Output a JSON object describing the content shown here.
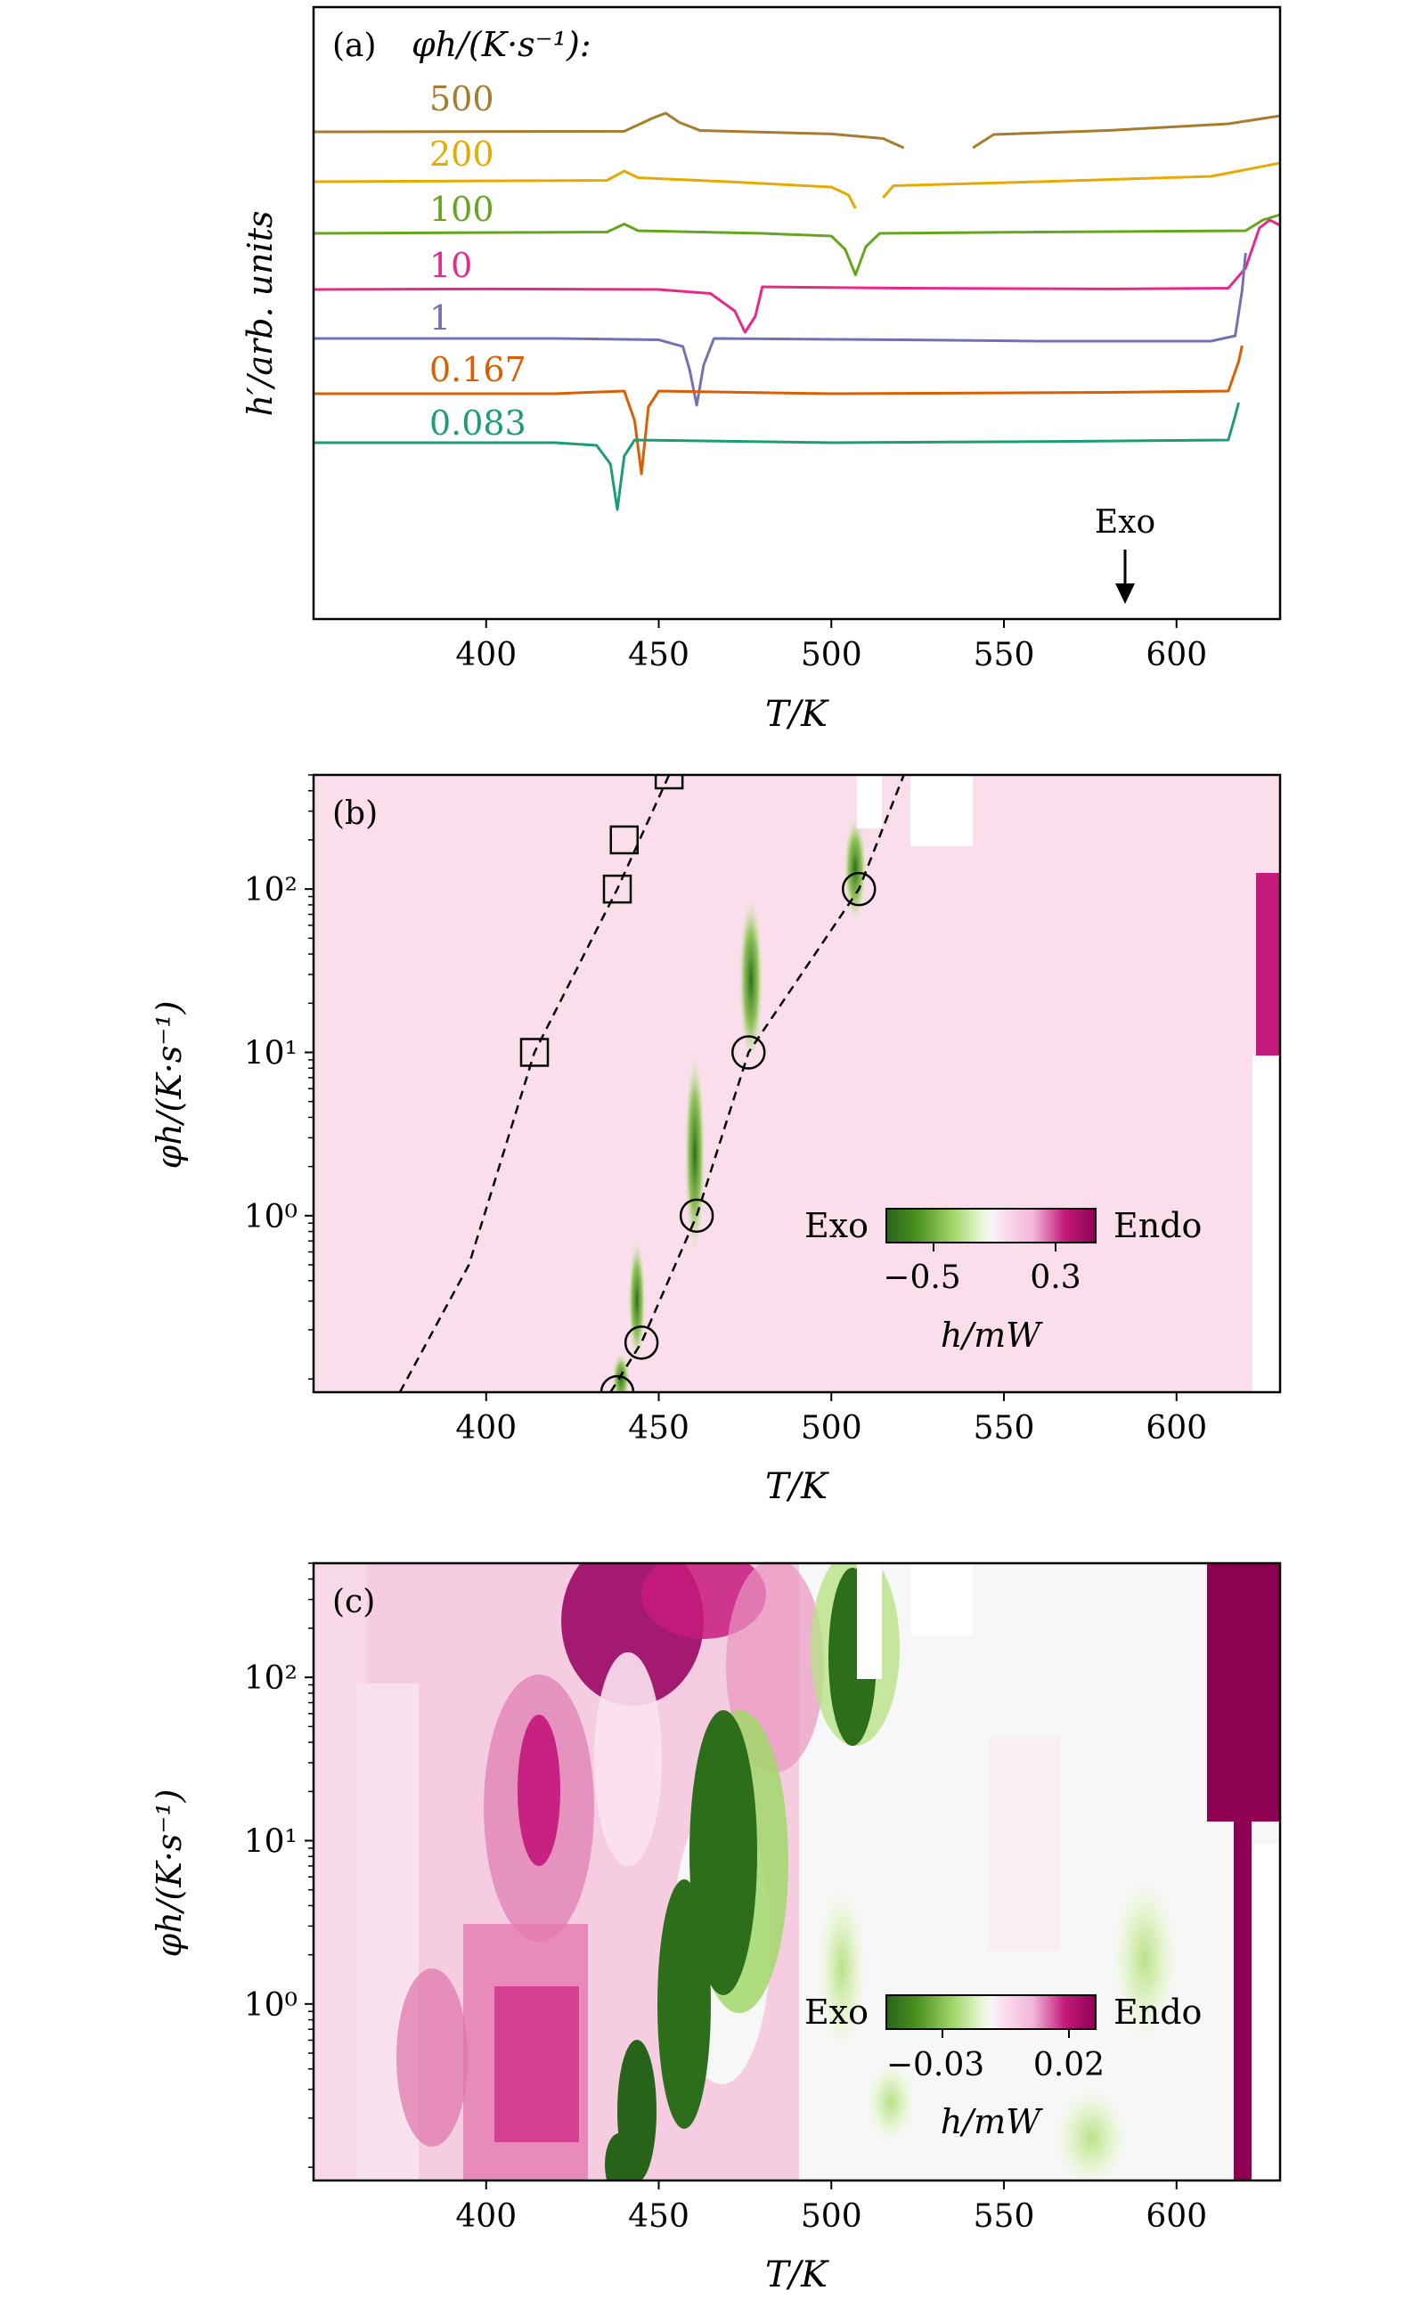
{
  "chart_data": [
    {
      "panel": "(a)",
      "type": "line",
      "legend_title": "φh/(K·s⁻¹):",
      "xlabel": "T/K",
      "ylabel": "h′/arb. units",
      "xlim": [
        350,
        630
      ],
      "xticks": [
        400,
        450,
        500,
        550,
        600
      ],
      "yticks": [],
      "annotation": "Exo",
      "series": [
        {
          "name": "500",
          "color": "#a67c2e",
          "points": [
            [
              350,
              0.0
            ],
            [
              440,
              0.02
            ],
            [
              448,
              0.5
            ],
            [
              452,
              0.7
            ],
            [
              456,
              0.35
            ],
            [
              462,
              0.05
            ],
            [
              500,
              -0.08
            ],
            [
              515,
              -0.25
            ],
            [
              521,
              -0.6
            ]
          ],
          "points2": [
            [
              541,
              -0.6
            ],
            [
              547,
              -0.1
            ],
            [
              580,
              0.05
            ],
            [
              615,
              0.3
            ],
            [
              630,
              0.6
            ]
          ]
        },
        {
          "name": "200",
          "color": "#e6ab02",
          "points": [
            [
              350,
              0.0
            ],
            [
              435,
              0.05
            ],
            [
              440,
              0.4
            ],
            [
              444,
              0.15
            ],
            [
              470,
              0.0
            ],
            [
              500,
              -0.2
            ],
            [
              505,
              -0.5
            ],
            [
              507,
              -1.0
            ]
          ],
          "points2": [
            [
              515,
              -0.6
            ],
            [
              518,
              -0.15
            ],
            [
              560,
              0.0
            ],
            [
              610,
              0.2
            ],
            [
              630,
              0.7
            ]
          ]
        },
        {
          "name": "100",
          "color": "#66a61e",
          "points": [
            [
              350,
              0.0
            ],
            [
              435,
              0.05
            ],
            [
              440,
              0.35
            ],
            [
              444,
              0.1
            ],
            [
              480,
              0.0
            ],
            [
              500,
              -0.1
            ],
            [
              504,
              -0.6
            ],
            [
              507,
              -1.55
            ],
            [
              510,
              -0.5
            ],
            [
              514,
              0.0
            ],
            [
              560,
              0.05
            ],
            [
              620,
              0.1
            ],
            [
              625,
              0.5
            ],
            [
              630,
              0.7
            ]
          ]
        },
        {
          "name": "10",
          "color": "#e7298a",
          "points": [
            [
              350,
              0.0
            ],
            [
              400,
              0.02
            ],
            [
              450,
              0.0
            ],
            [
              465,
              -0.15
            ],
            [
              472,
              -0.8
            ],
            [
              475,
              -1.6
            ],
            [
              478,
              -1.0
            ],
            [
              480,
              0.1
            ],
            [
              520,
              0.05
            ],
            [
              580,
              0.02
            ],
            [
              615,
              0.05
            ],
            [
              620,
              0.8
            ],
            [
              624,
              2.3
            ],
            [
              627,
              2.6
            ],
            [
              630,
              2.4
            ]
          ]
        },
        {
          "name": "1",
          "color": "#7570b3",
          "points": [
            [
              350,
              0.0
            ],
            [
              420,
              0.0
            ],
            [
              450,
              -0.05
            ],
            [
              457,
              -0.3
            ],
            [
              459,
              -1.2
            ],
            [
              461,
              -2.5
            ],
            [
              463,
              -1.0
            ],
            [
              466,
              0.0
            ],
            [
              520,
              -0.05
            ],
            [
              560,
              -0.1
            ],
            [
              610,
              -0.1
            ],
            [
              617,
              0.1
            ],
            [
              619,
              1.8
            ],
            [
              620,
              3.2
            ]
          ]
        },
        {
          "name": "0.167",
          "color": "#d95f02",
          "points": [
            [
              350,
              0.0
            ],
            [
              420,
              0.0
            ],
            [
              440,
              0.1
            ],
            [
              443,
              -1.0
            ],
            [
              445,
              -3.0
            ],
            [
              447,
              -0.5
            ],
            [
              450,
              0.1
            ],
            [
              500,
              0.0
            ],
            [
              580,
              0.05
            ],
            [
              615,
              0.1
            ],
            [
              618,
              1.2
            ],
            [
              619,
              1.8
            ]
          ]
        },
        {
          "name": "0.083",
          "color": "#1b9e77",
          "points": [
            [
              350,
              0.0
            ],
            [
              420,
              0.0
            ],
            [
              432,
              -0.1
            ],
            [
              436,
              -0.8
            ],
            [
              438,
              -2.5
            ],
            [
              440,
              -0.5
            ],
            [
              443,
              0.1
            ],
            [
              500,
              0.0
            ],
            [
              570,
              0.05
            ],
            [
              615,
              0.1
            ],
            [
              617,
              1.0
            ],
            [
              618,
              1.5
            ]
          ]
        }
      ]
    },
    {
      "panel": "(b)",
      "type": "heatmap",
      "xlabel": "T/K",
      "ylabel": "φh/(K·s⁻¹)",
      "xlim": [
        350,
        630
      ],
      "ylim": [
        0.083,
        500
      ],
      "yscale": "log",
      "xticks": [
        400,
        450,
        500,
        550,
        600
      ],
      "ytick_labels": [
        "10⁰",
        "10¹",
        "10²"
      ],
      "colorbar": {
        "left_label": "Exo",
        "right_label": "Endo",
        "tick_labels": [
          "−0.5",
          "0.3"
        ],
        "label": "h/mW"
      },
      "squares": [
        [
          414,
          10
        ],
        [
          438,
          100
        ],
        [
          440,
          200
        ],
        [
          453,
          500
        ]
      ],
      "circles": [
        [
          438,
          0.083
        ],
        [
          445,
          0.167
        ],
        [
          461,
          1
        ],
        [
          476,
          10
        ],
        [
          508,
          100
        ]
      ],
      "fit_lines": [
        [
          [
            375,
            0.083
          ],
          [
            395,
            0.5
          ],
          [
            414,
            10
          ],
          [
            438,
            100
          ],
          [
            453,
            500
          ]
        ],
        [
          [
            436,
            0.083
          ],
          [
            445,
            0.167
          ],
          [
            461,
            1
          ],
          [
            476,
            10
          ],
          [
            508,
            100
          ],
          [
            521,
            500
          ]
        ]
      ]
    },
    {
      "panel": "(c)",
      "type": "heatmap",
      "xlabel": "T/K",
      "ylabel": "φh/(K·s⁻¹)",
      "xlim": [
        350,
        630
      ],
      "ylim": [
        0.083,
        500
      ],
      "yscale": "log",
      "xticks": [
        400,
        450,
        500,
        550,
        600
      ],
      "ytick_labels": [
        "10⁰",
        "10¹",
        "10²"
      ],
      "colorbar": {
        "left_label": "Exo",
        "right_label": "Endo",
        "tick_labels": [
          "−0.03",
          "0.02"
        ],
        "label": "h/mW"
      }
    }
  ],
  "colors": {
    "exo": "#276419",
    "endo": "#8e0152",
    "background_b": "#fbe3ee",
    "background_c": "#f3c5da"
  }
}
